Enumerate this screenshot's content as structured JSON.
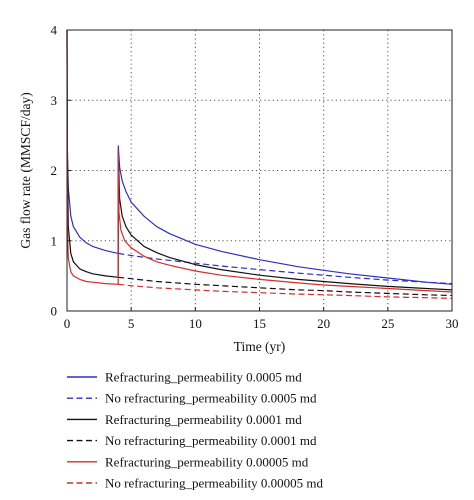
{
  "chart_data": {
    "type": "line",
    "xlabel": "Time (yr)",
    "ylabel": "Gas flow rate (MMSCF/day)",
    "xlim": [
      0,
      30
    ],
    "ylim": [
      0,
      4
    ],
    "xticks": [
      0,
      5,
      10,
      15,
      20,
      25,
      30
    ],
    "yticks": [
      0,
      1,
      2,
      3,
      4
    ],
    "grid": "dotted",
    "legend_position": "below",
    "series": [
      {
        "name": "Refracturing_permeability 0.0005 md",
        "color": "#2f2fc8",
        "dash": "solid",
        "x": [
          0,
          0.02,
          0.1,
          0.3,
          0.5,
          1,
          1.5,
          2,
          3,
          3.99,
          4.0,
          4.1,
          4.3,
          4.6,
          5,
          6,
          7,
          8,
          10,
          12,
          15,
          18,
          20,
          22,
          25,
          28,
          30
        ],
        "y": [
          4.0,
          2.35,
          1.75,
          1.35,
          1.2,
          1.05,
          0.97,
          0.92,
          0.86,
          0.82,
          2.35,
          2.05,
          1.85,
          1.7,
          1.55,
          1.35,
          1.2,
          1.1,
          0.95,
          0.85,
          0.73,
          0.63,
          0.58,
          0.53,
          0.47,
          0.41,
          0.38
        ]
      },
      {
        "name": "No refracturing_permeability 0.0005 md",
        "color": "#2f2fc8",
        "dash": "dashed",
        "x": [
          4,
          5,
          7,
          10,
          12,
          15,
          18,
          20,
          22,
          25,
          28,
          30
        ],
        "y": [
          0.82,
          0.79,
          0.74,
          0.68,
          0.64,
          0.59,
          0.54,
          0.51,
          0.48,
          0.44,
          0.41,
          0.39
        ]
      },
      {
        "name": "Refracturing_permeability 0.0001 md",
        "color": "#111111",
        "dash": "solid",
        "x": [
          0,
          0.02,
          0.1,
          0.3,
          0.5,
          1,
          1.5,
          2,
          3,
          3.99,
          4.0,
          4.1,
          4.3,
          4.6,
          5,
          6,
          7,
          8,
          10,
          12,
          15,
          18,
          20,
          22,
          25,
          28,
          30
        ],
        "y": [
          4.0,
          2.3,
          1.2,
          0.82,
          0.7,
          0.6,
          0.56,
          0.53,
          0.5,
          0.48,
          2.3,
          1.6,
          1.35,
          1.2,
          1.08,
          0.92,
          0.83,
          0.76,
          0.66,
          0.59,
          0.51,
          0.45,
          0.42,
          0.39,
          0.35,
          0.32,
          0.3
        ]
      },
      {
        "name": "No refracturing_permeability 0.0001 md",
        "color": "#111111",
        "dash": "dashed",
        "x": [
          4,
          5,
          7,
          10,
          12,
          15,
          18,
          20,
          22,
          25,
          28,
          30
        ],
        "y": [
          0.48,
          0.46,
          0.42,
          0.38,
          0.36,
          0.33,
          0.3,
          0.29,
          0.27,
          0.25,
          0.23,
          0.22
        ]
      },
      {
        "name": "Refracturing_permeability 0.00005 md",
        "color": "#d62c2c",
        "dash": "solid",
        "x": [
          0,
          0.02,
          0.05,
          0.1,
          0.3,
          0.5,
          1,
          1.5,
          2,
          3,
          3.99,
          4.0,
          4.05,
          4.2,
          4.5,
          5,
          6,
          7,
          8,
          10,
          12,
          15,
          18,
          20,
          22,
          25,
          28,
          30
        ],
        "y": [
          4.0,
          1.9,
          1.1,
          0.75,
          0.56,
          0.5,
          0.45,
          0.42,
          0.41,
          0.39,
          0.38,
          2.3,
          1.4,
          1.15,
          1.0,
          0.9,
          0.78,
          0.7,
          0.65,
          0.57,
          0.51,
          0.45,
          0.4,
          0.37,
          0.35,
          0.32,
          0.29,
          0.27
        ]
      },
      {
        "name": "No refracturing_permeability 0.00005 md",
        "color": "#d62c2c",
        "dash": "dashed",
        "x": [
          4,
          5,
          7,
          10,
          12,
          15,
          18,
          20,
          22,
          25,
          28,
          30
        ],
        "y": [
          0.38,
          0.36,
          0.33,
          0.3,
          0.28,
          0.26,
          0.24,
          0.23,
          0.22,
          0.2,
          0.19,
          0.18
        ]
      }
    ]
  }
}
